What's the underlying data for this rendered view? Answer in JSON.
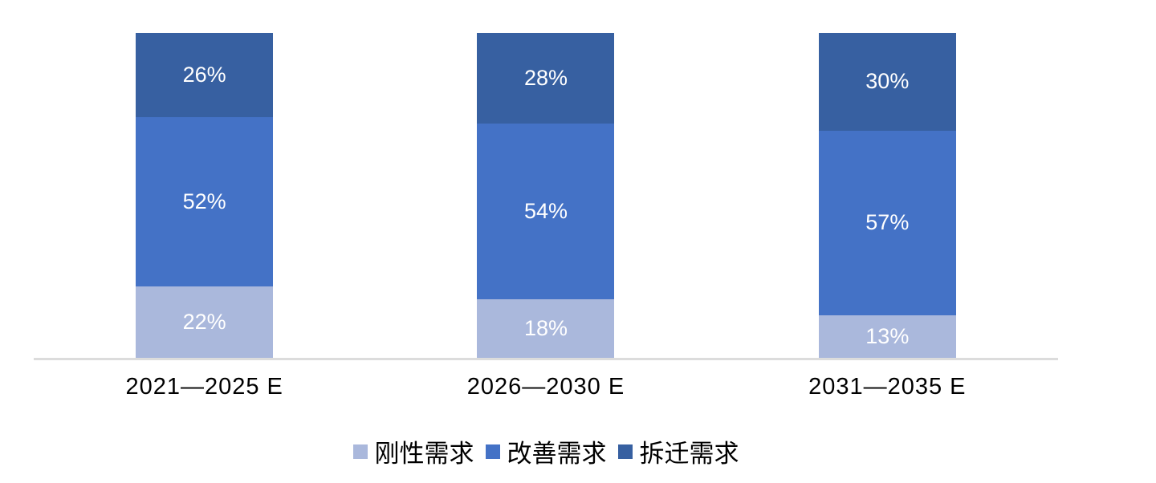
{
  "chart_data": {
    "type": "bar",
    "variant": "stacked-100-percent",
    "title": "",
    "xlabel": "",
    "ylabel": "",
    "ylim": [
      0,
      100
    ],
    "grid": false,
    "legend_position": "bottom",
    "value_suffix": "%",
    "categories": [
      "2021—2025 E",
      "2026—2030 E",
      "2031—2035 E"
    ],
    "series": [
      {
        "name": "刚性需求",
        "color": "#aab8dc",
        "values": [
          22,
          18,
          13
        ]
      },
      {
        "name": "改善需求",
        "color": "#4472c6",
        "values": [
          52,
          54,
          57
        ]
      },
      {
        "name": "拆迁需求",
        "color": "#3760a1",
        "values": [
          26,
          28,
          30
        ]
      }
    ],
    "bar_label_color": "#ffffff",
    "axis_line_color": "#dcdcdc",
    "text_color": "#000000"
  }
}
